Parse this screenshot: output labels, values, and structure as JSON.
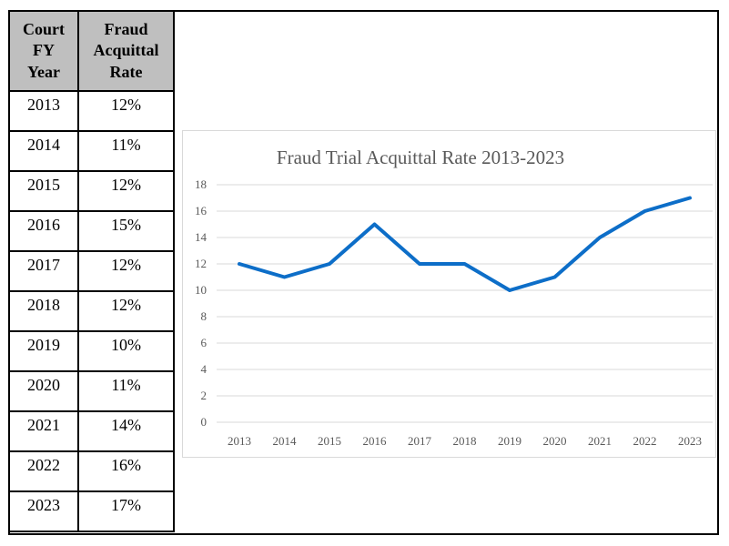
{
  "table": {
    "headers": [
      "Court FY Year",
      "Fraud Acquittal Rate"
    ],
    "rows": [
      [
        "2013",
        "12%"
      ],
      [
        "2014",
        "11%"
      ],
      [
        "2015",
        "12%"
      ],
      [
        "2016",
        "15%"
      ],
      [
        "2017",
        "12%"
      ],
      [
        "2018",
        "12%"
      ],
      [
        "2019",
        "10%"
      ],
      [
        "2020",
        "11%"
      ],
      [
        "2021",
        "14%"
      ],
      [
        "2022",
        "16%"
      ],
      [
        "2023",
        "17%"
      ]
    ]
  },
  "chart_data": {
    "type": "line",
    "title": "Fraud Trial Acquittal Rate 2013-2023",
    "categories": [
      "2013",
      "2014",
      "2015",
      "2016",
      "2017",
      "2018",
      "2019",
      "2020",
      "2021",
      "2022",
      "2023"
    ],
    "values": [
      12,
      11,
      12,
      15,
      12,
      12,
      10,
      11,
      14,
      16,
      17
    ],
    "xlabel": "",
    "ylabel": "",
    "ylim": [
      0,
      18
    ],
    "ytick_step": 2,
    "grid": true,
    "legend": "none",
    "colors": {
      "line": "#0D6EC8",
      "grid": "#D9D9D9",
      "axis_text": "#595959",
      "title_text": "#595959",
      "table_header_bg": "#BFBFBF",
      "panel_border": "#D9D9D9",
      "table_border": "#000000"
    }
  }
}
